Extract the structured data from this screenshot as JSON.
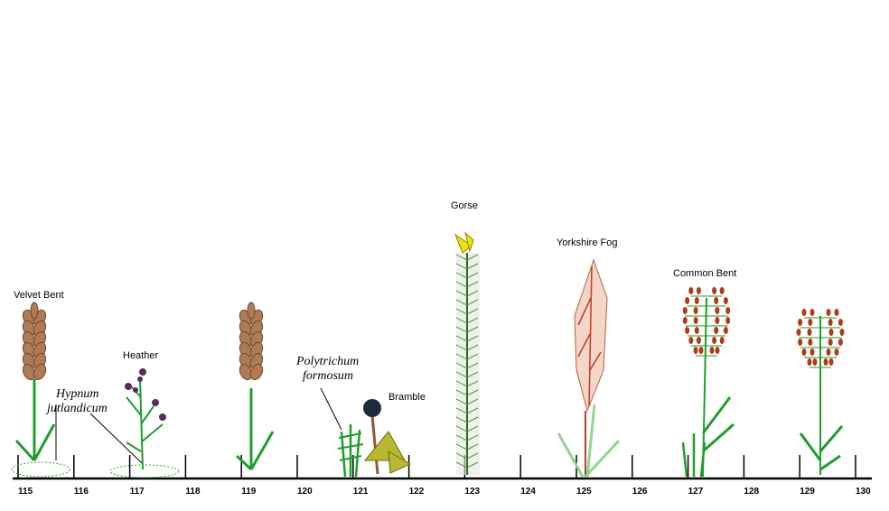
{
  "transect": {
    "labels": {
      "velvet_bent": "Velvet Bent",
      "heather": "Heather",
      "hypnum_line1": "Hypnum",
      "hypnum_line2": "jutlandicum",
      "polytrichum_line1": "Polytrichum",
      "polytrichum_line2": "formosum",
      "bramble": "Bramble",
      "gorse": "Gorse",
      "yorkshire_fog": "Yorkshire Fog",
      "common_bent": "Common Bent"
    },
    "ticks": [
      "115",
      "116",
      "117",
      "118",
      "119",
      "120",
      "121",
      "122",
      "123",
      "124",
      "125",
      "126",
      "127",
      "128",
      "129",
      "130"
    ]
  },
  "colors": {
    "ground": "#000000",
    "stem": "#1e9e2a",
    "spikelet": "#b07a55",
    "heather_flower": "#5b2a5a",
    "gorse_flower": "#f2e200",
    "bramble_leaf": "#b9b830",
    "blackberry": "#1f2a3a",
    "fog_panicle": "#f5d6c6",
    "fog_vein": "#c0392b",
    "bent_seed": "#b23a1a"
  }
}
